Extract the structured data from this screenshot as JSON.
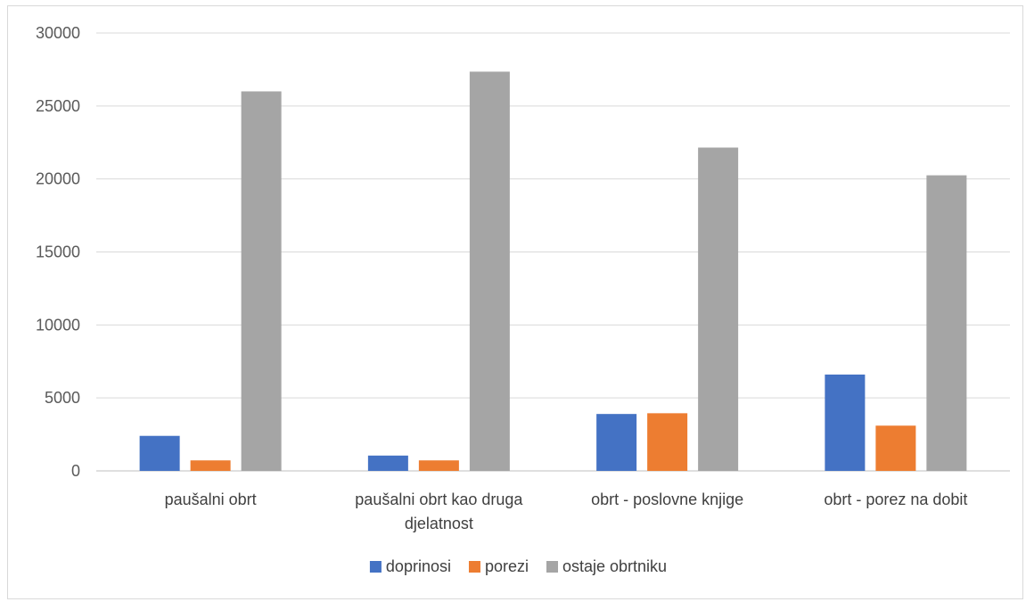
{
  "chart_data": {
    "type": "bar",
    "categories": [
      [
        "paušalni obrt"
      ],
      [
        "paušalni obrt kao druga",
        "djelatnost"
      ],
      [
        "obrt - poslovne knjige"
      ],
      [
        "obrt - porez na dobit"
      ]
    ],
    "series": [
      {
        "name": "doprinosi",
        "color": "#4472c4",
        "values": [
          2400,
          1050,
          3900,
          6600
        ]
      },
      {
        "name": "porezi",
        "color": "#ed7d31",
        "values": [
          720,
          720,
          3950,
          3100
        ]
      },
      {
        "name": "ostaje obrtniku",
        "color": "#a5a5a5",
        "values": [
          26000,
          27350,
          22150,
          20250
        ]
      }
    ],
    "ylim": [
      0,
      30000
    ],
    "yticks": [
      0,
      5000,
      10000,
      15000,
      20000,
      25000,
      30000
    ],
    "grid": true,
    "legend_position": "bottom"
  }
}
